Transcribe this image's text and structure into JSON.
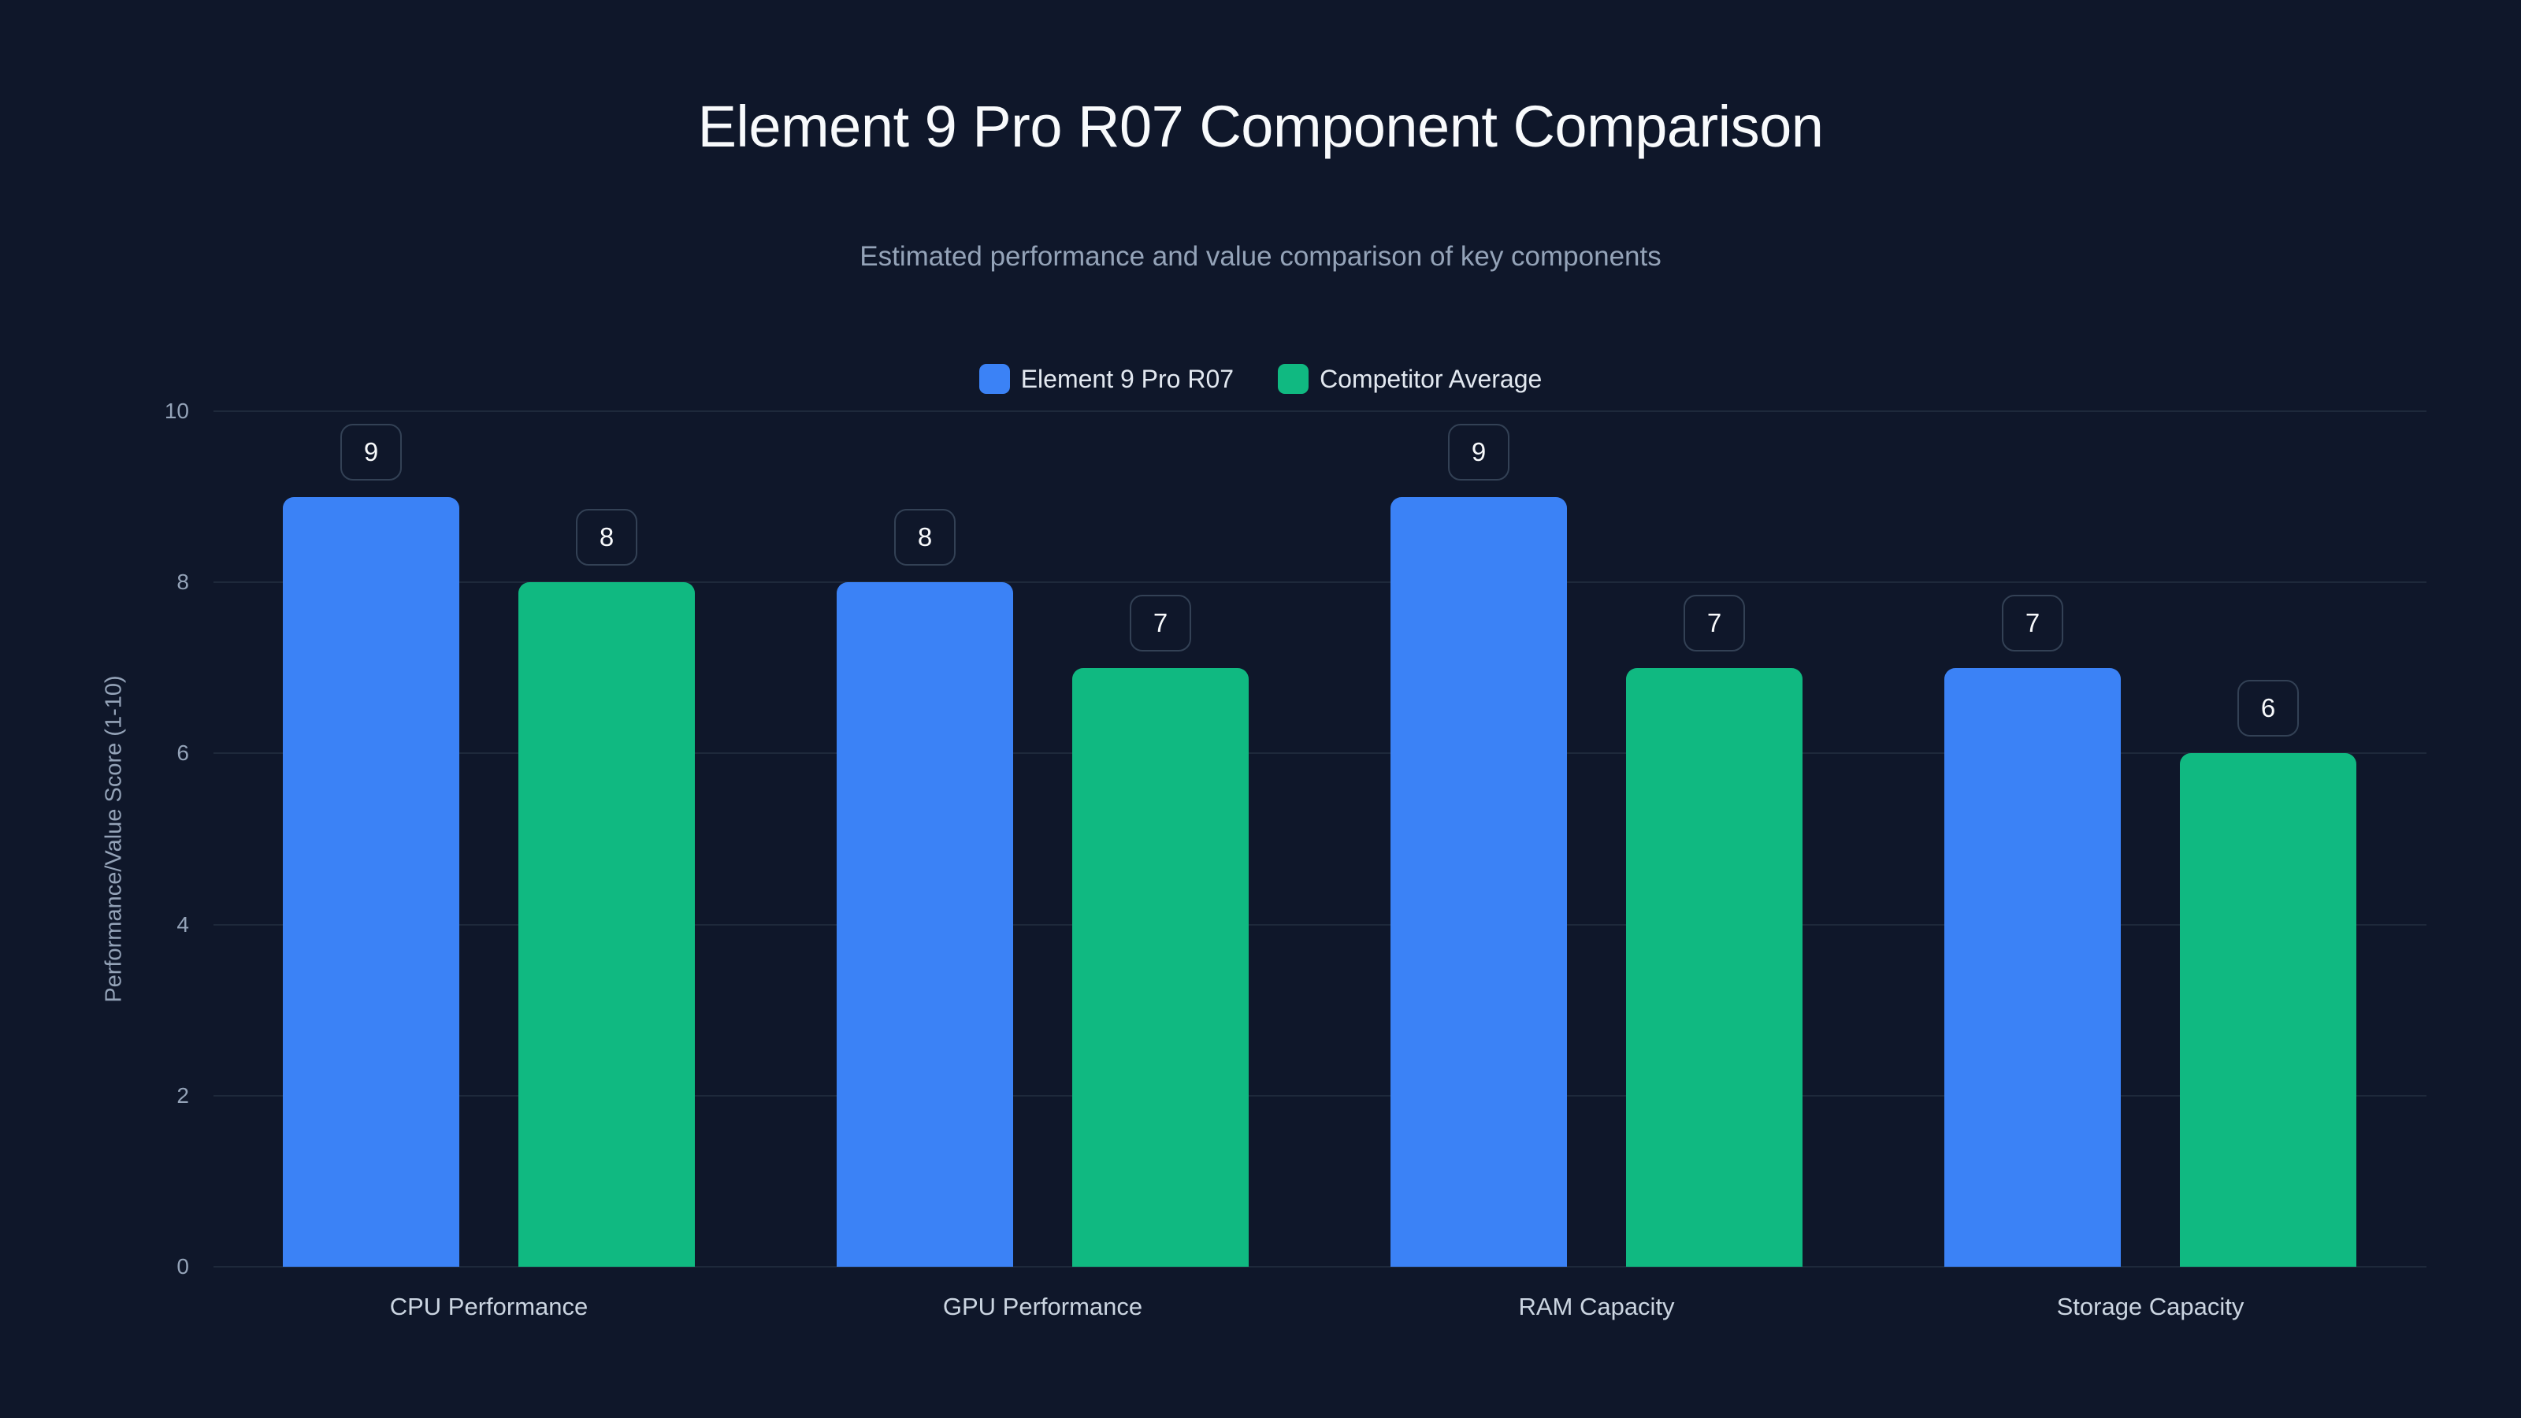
{
  "header": {
    "title": "Element 9 Pro R07 Component Comparison",
    "subtitle": "Estimated performance and value comparison of key components"
  },
  "legend": [
    {
      "label": "Element 9 Pro R07",
      "color": "#3b82f6"
    },
    {
      "label": "Competitor Average",
      "color": "#10b981"
    }
  ],
  "axes": {
    "y_title": "Performance/Value Score (1-10)",
    "y_ticks": [
      "0",
      "2",
      "4",
      "6",
      "8",
      "10"
    ]
  },
  "chart_data": {
    "type": "bar",
    "title": "Element 9 Pro R07 Component Comparison",
    "subtitle": "Estimated performance and value comparison of key components",
    "categories": [
      "CPU Performance",
      "GPU Performance",
      "RAM Capacity",
      "Storage Capacity"
    ],
    "series": [
      {
        "name": "Element 9 Pro R07",
        "color": "#3b82f6",
        "values": [
          9,
          8,
          9,
          7
        ]
      },
      {
        "name": "Competitor Average",
        "color": "#10b981",
        "values": [
          8,
          7,
          7,
          6
        ]
      }
    ],
    "xlabel": "",
    "ylabel": "Performance/Value Score (1-10)",
    "ylim": [
      0,
      10
    ],
    "yticks": [
      0,
      2,
      4,
      6,
      8,
      10
    ],
    "grid": true,
    "legend_position": "top-center",
    "data_labels": true
  }
}
